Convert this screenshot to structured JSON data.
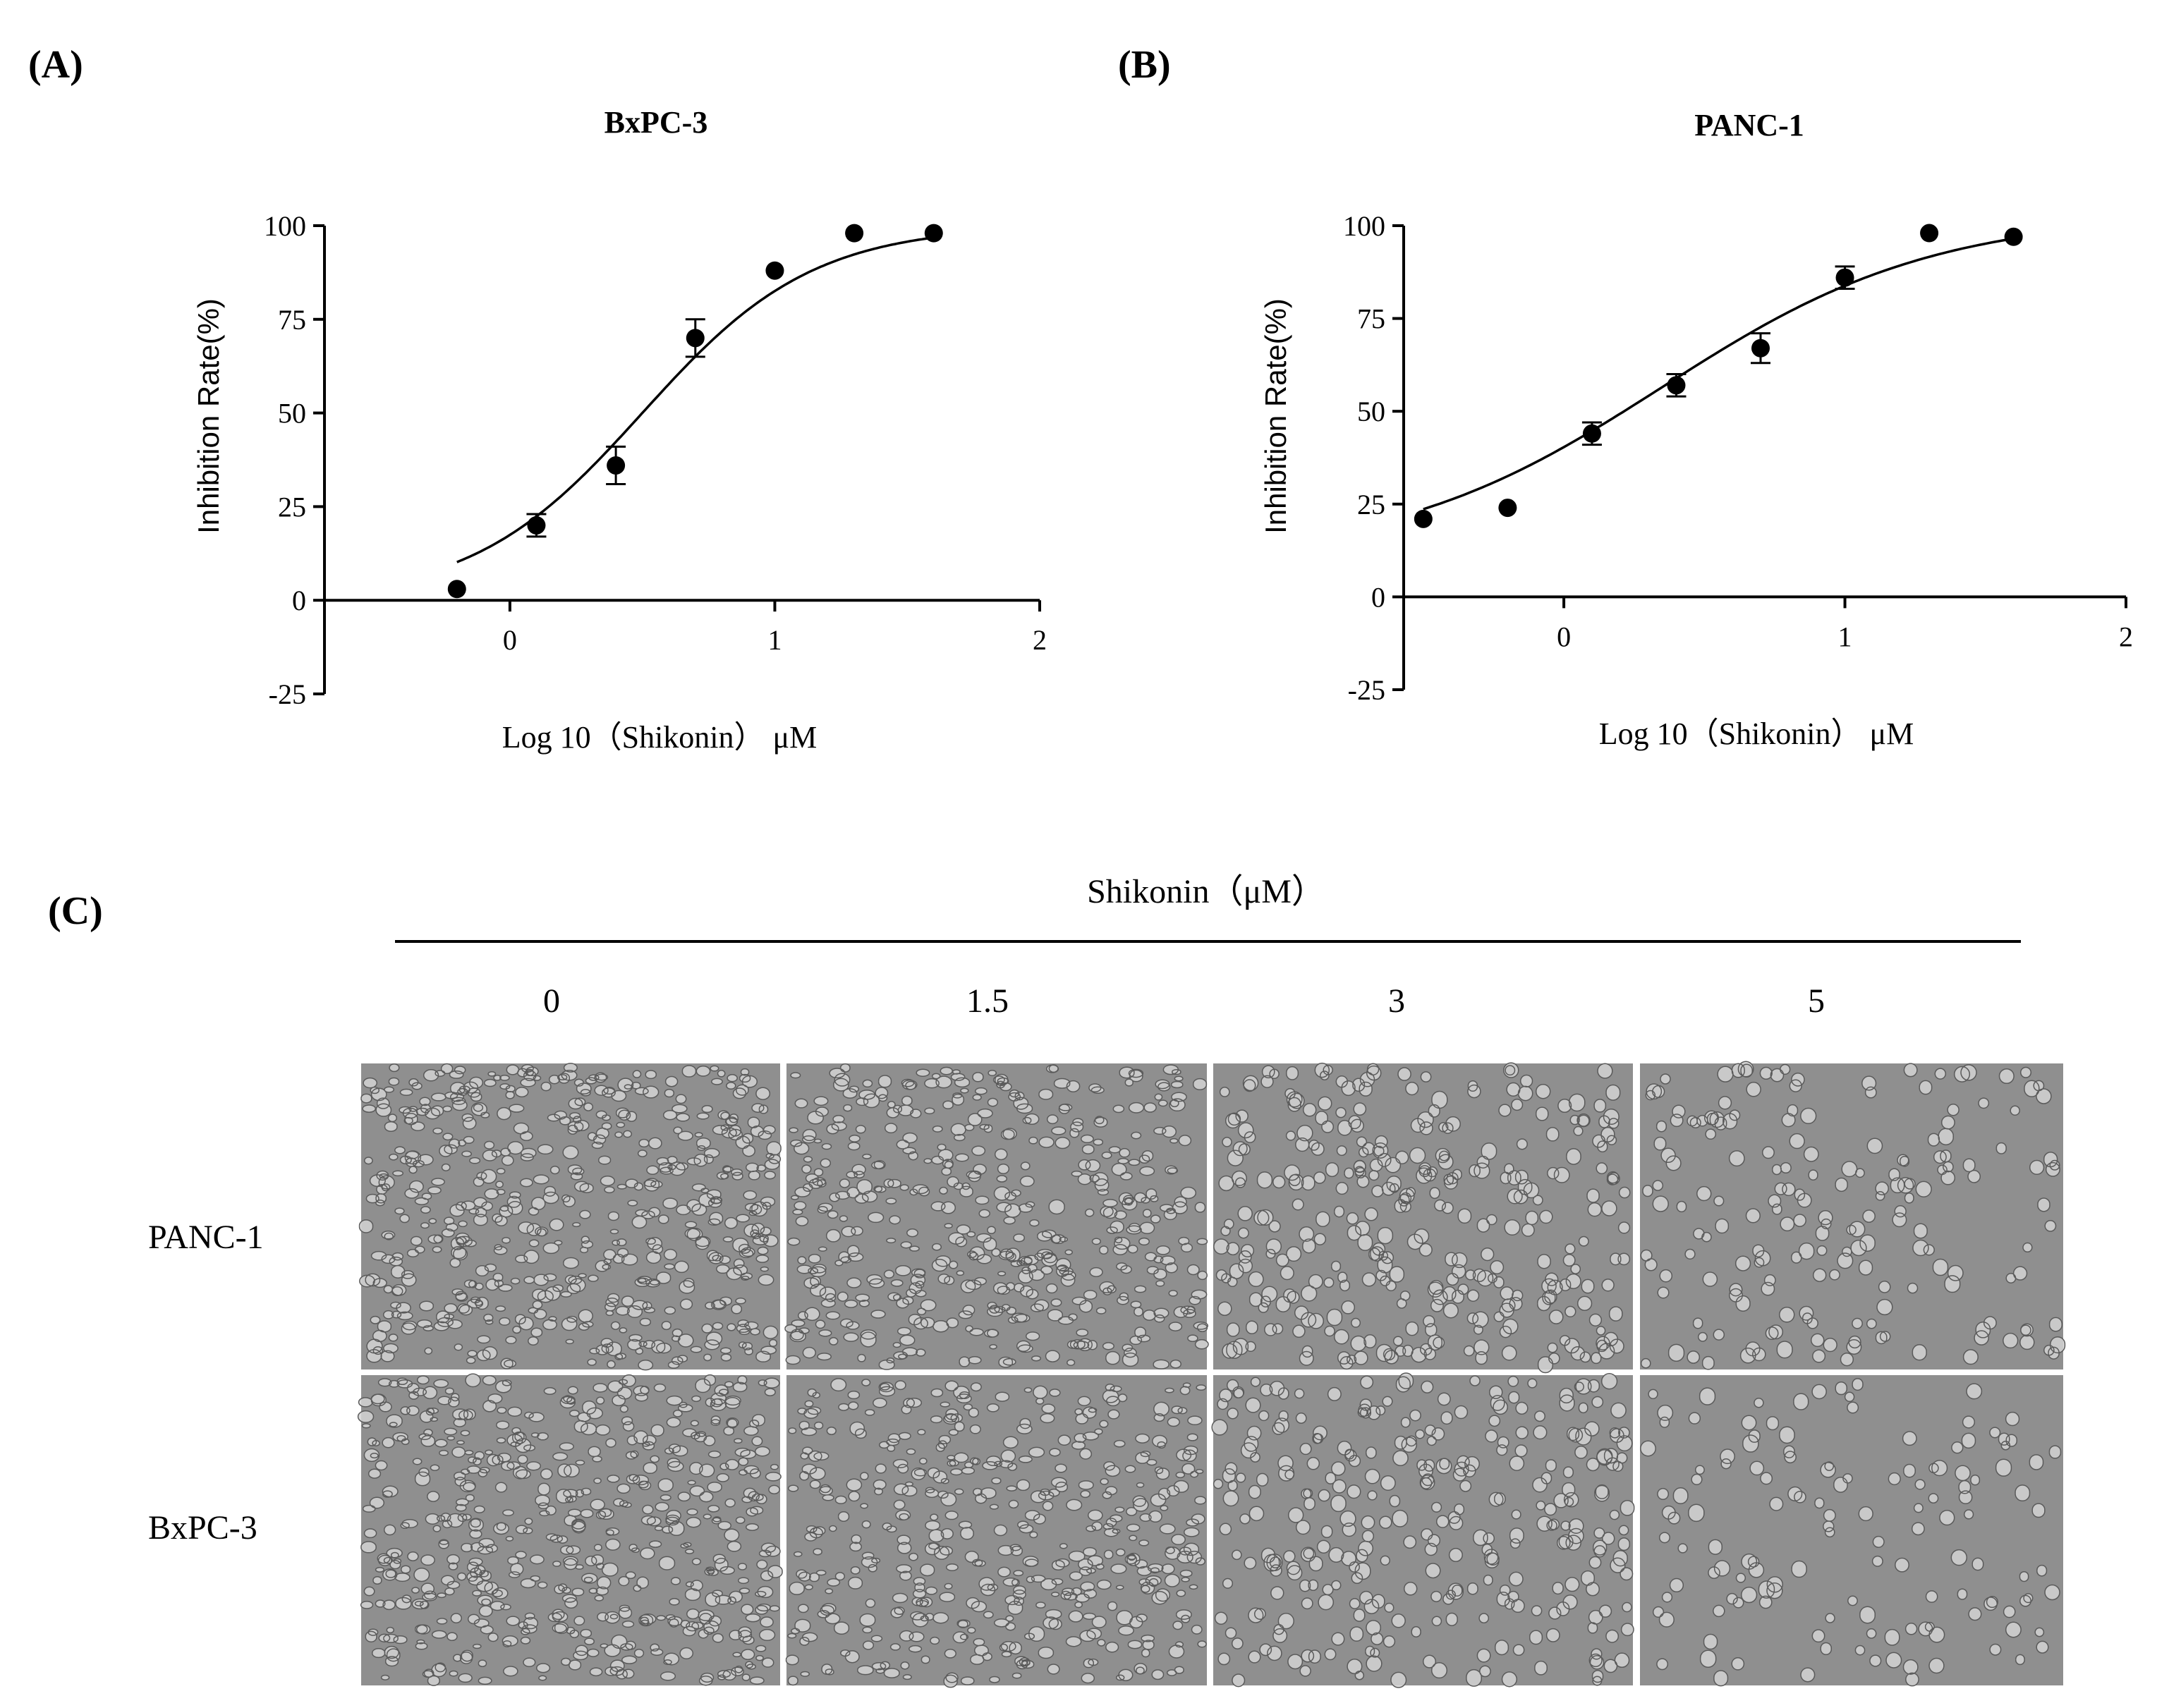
{
  "panels": {
    "A": "(A)",
    "B": "(B)",
    "C": "(C)"
  },
  "chart_data": [
    {
      "type": "scatter",
      "title": "BxPC-3",
      "xlabel": "Log 10（Shikonin） μM",
      "ylabel": "Inhibition Rate(%)",
      "xlim": [
        -0.7,
        2
      ],
      "ylim": [
        -25,
        100
      ],
      "xticks": [
        0,
        1,
        2
      ],
      "yticks": [
        -25,
        0,
        25,
        50,
        75,
        100
      ],
      "grid": false,
      "fit": {
        "type": "sigmoid",
        "bottom": 0,
        "top": 100,
        "logIC50": 0.5,
        "hill": 1.35
      },
      "series": [
        {
          "x": [
            -0.2,
            0.1,
            0.4,
            0.7,
            1.0,
            1.3,
            1.6
          ],
          "y": [
            3,
            20,
            36,
            70,
            88,
            98,
            98
          ],
          "err": [
            1,
            3,
            5,
            5,
            1,
            1,
            1
          ]
        }
      ]
    },
    {
      "type": "scatter",
      "title": "PANC-1",
      "xlabel": "Log 10（Shikonin） μM",
      "ylabel": "Inhibition Rate(%)",
      "xlim": [
        -0.6,
        2
      ],
      "ylim": [
        -25,
        100
      ],
      "xticks": [
        0,
        1,
        2
      ],
      "yticks": [
        -25,
        0,
        25,
        50,
        75,
        100
      ],
      "grid": false,
      "fit": {
        "type": "sigmoid",
        "bottom": 10,
        "top": 103,
        "logIC50": 0.35,
        "hill": 0.9
      },
      "series": [
        {
          "x": [
            -0.5,
            -0.2,
            0.1,
            0.4,
            0.7,
            1.0,
            1.3,
            1.6
          ],
          "y": [
            21,
            24,
            44,
            57,
            67,
            86,
            98,
            97
          ],
          "err": [
            1,
            1,
            3,
            3,
            4,
            3,
            1,
            1
          ]
        }
      ]
    }
  ],
  "micrographs": {
    "header": "Shikonin（μM）",
    "concentrations": [
      "0",
      "1.5",
      "3",
      "5"
    ],
    "rows": [
      "PANC-1",
      "BxPC-3"
    ],
    "density": [
      [
        1.0,
        0.85,
        0.55,
        0.25
      ],
      [
        1.0,
        0.8,
        0.5,
        0.15
      ]
    ],
    "colors": {
      "background": "#8f8f8f",
      "cell": "#d4d4d4",
      "edge": "#5a5a5a"
    }
  }
}
